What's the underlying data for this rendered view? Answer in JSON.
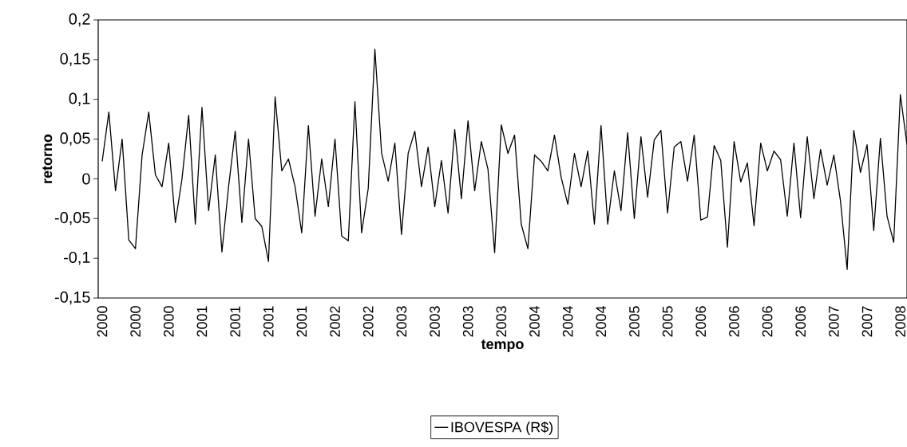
{
  "chart_data": {
    "type": "line",
    "xlabel": "tempo",
    "ylabel": "retorno",
    "categories": [
      "2000",
      null,
      null,
      null,
      null,
      "2000",
      null,
      null,
      null,
      null,
      "2000",
      null,
      null,
      null,
      null,
      "2001",
      null,
      null,
      null,
      null,
      "2001",
      null,
      null,
      null,
      null,
      "2001",
      null,
      null,
      null,
      null,
      "2001",
      null,
      null,
      null,
      null,
      "2002",
      null,
      null,
      null,
      null,
      "2002",
      null,
      null,
      null,
      null,
      "2003",
      null,
      null,
      null,
      null,
      "2003",
      null,
      null,
      null,
      null,
      "2003",
      null,
      null,
      null,
      null,
      "2003",
      null,
      null,
      null,
      null,
      "2004",
      null,
      null,
      null,
      null,
      "2004",
      null,
      null,
      null,
      null,
      "2004",
      null,
      null,
      null,
      null,
      "2005",
      null,
      null,
      null,
      null,
      "2005",
      null,
      null,
      null,
      null,
      "2006",
      null,
      null,
      null,
      null,
      "2006",
      null,
      null,
      null,
      null,
      "2006",
      null,
      null,
      null,
      null,
      "2006",
      null,
      null,
      null,
      null,
      "2007",
      null,
      null,
      null,
      null,
      "2007",
      null,
      null,
      null,
      null,
      "2008",
      null
    ],
    "series": [
      {
        "name": "IBOVESPA (R$)",
        "color": "#000000",
        "values": [
          0.022,
          0.084,
          -0.015,
          0.05,
          -0.077,
          -0.088,
          0.03,
          0.084,
          0.005,
          -0.01,
          0.045,
          -0.055,
          0.0,
          0.08,
          -0.057,
          0.09,
          -0.04,
          0.03,
          -0.092,
          -0.01,
          0.06,
          -0.055,
          0.05,
          -0.05,
          -0.06,
          -0.104,
          0.103,
          0.01,
          0.025,
          -0.01,
          -0.068,
          0.067,
          -0.047,
          0.025,
          -0.035,
          0.05,
          -0.072,
          -0.078,
          0.097,
          -0.068,
          -0.012,
          0.163,
          0.033,
          -0.003,
          0.045,
          -0.07,
          0.032,
          0.06,
          -0.01,
          0.04,
          -0.035,
          0.023,
          -0.043,
          0.062,
          -0.025,
          0.073,
          -0.015,
          0.047,
          0.012,
          -0.093,
          0.068,
          0.032,
          0.055,
          -0.057,
          -0.088,
          0.03,
          0.022,
          0.01,
          0.055,
          0.002,
          -0.032,
          0.032,
          -0.01,
          0.035,
          -0.057,
          0.067,
          -0.057,
          0.01,
          -0.04,
          0.058,
          -0.05,
          0.053,
          -0.023,
          0.049,
          0.061,
          -0.043,
          0.04,
          0.047,
          -0.003,
          0.055,
          -0.052,
          -0.048,
          0.042,
          0.023,
          -0.086,
          0.047,
          -0.004,
          0.02,
          -0.059,
          0.045,
          0.01,
          0.035,
          0.024,
          -0.047,
          0.045,
          -0.049,
          0.053,
          -0.025,
          0.037,
          -0.008,
          0.03,
          -0.028,
          -0.114,
          0.061,
          0.008,
          0.043,
          -0.065,
          0.051,
          -0.047,
          -0.08,
          0.106,
          0.043
        ]
      }
    ],
    "ylim": [
      -0.15,
      0.2
    ],
    "yticks": [
      {
        "value": -0.15,
        "label": "-0,15"
      },
      {
        "value": -0.1,
        "label": "-0,1"
      },
      {
        "value": -0.05,
        "label": "-0,05"
      },
      0,
      {
        "value": 0.05,
        "label": "0,05"
      },
      {
        "value": 0.1,
        "label": "0,1"
      },
      {
        "value": 0.15,
        "label": "0,15"
      },
      {
        "value": 0.2,
        "label": "0,2"
      }
    ],
    "grid": false,
    "legend": "bottom",
    "marker": "none",
    "line_style": "solid"
  }
}
